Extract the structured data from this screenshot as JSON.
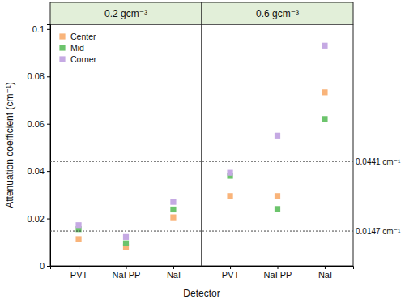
{
  "chart_data": [
    {
      "type": "scatter",
      "title": "0.2 gcm⁻³",
      "x_label": "Detector",
      "y_label": "Attenuation coefficient (cm⁻¹)",
      "categories": [
        "PVT",
        "NaI PP",
        "NaI"
      ],
      "series": [
        {
          "name": "Center",
          "color": "#f9b47a",
          "marker": "square",
          "values": [
            0.0113,
            0.008,
            0.0205
          ]
        },
        {
          "name": "Mid",
          "color": "#6cc46c",
          "marker": "square",
          "values": [
            0.0155,
            0.0095,
            0.0238
          ]
        },
        {
          "name": "Corner",
          "color": "#c5a9e3",
          "marker": "square",
          "values": [
            0.0172,
            0.0122,
            0.027
          ]
        }
      ],
      "ylim": [
        0,
        0.102
      ],
      "yticks": [
        0,
        0.02,
        0.04,
        0.06,
        0.08,
        0.1
      ],
      "legend": "upper left"
    },
    {
      "type": "scatter",
      "title": "0.6 gcm⁻³",
      "categories": [
        "PVT",
        "NaI PP",
        "NaI"
      ],
      "series": [
        {
          "color": "#f9b47a",
          "marker": "square",
          "values": [
            0.0295,
            0.0295,
            0.0733
          ]
        },
        {
          "color": "#6cc46c",
          "marker": "square",
          "values": [
            0.038,
            0.024,
            0.062
          ]
        },
        {
          "color": "#c5a9e3",
          "marker": "square",
          "values": [
            0.0393,
            0.055,
            0.093
          ]
        }
      ],
      "ylim": [
        0,
        0.102
      ],
      "tick_labels": "x",
      "reference_lines": [
        {
          "value": 0.0441,
          "label": "0.0441 cm⁻¹"
        },
        {
          "value": 0.0147,
          "label": "0.0147 cm⁻¹"
        }
      ]
    }
  ]
}
